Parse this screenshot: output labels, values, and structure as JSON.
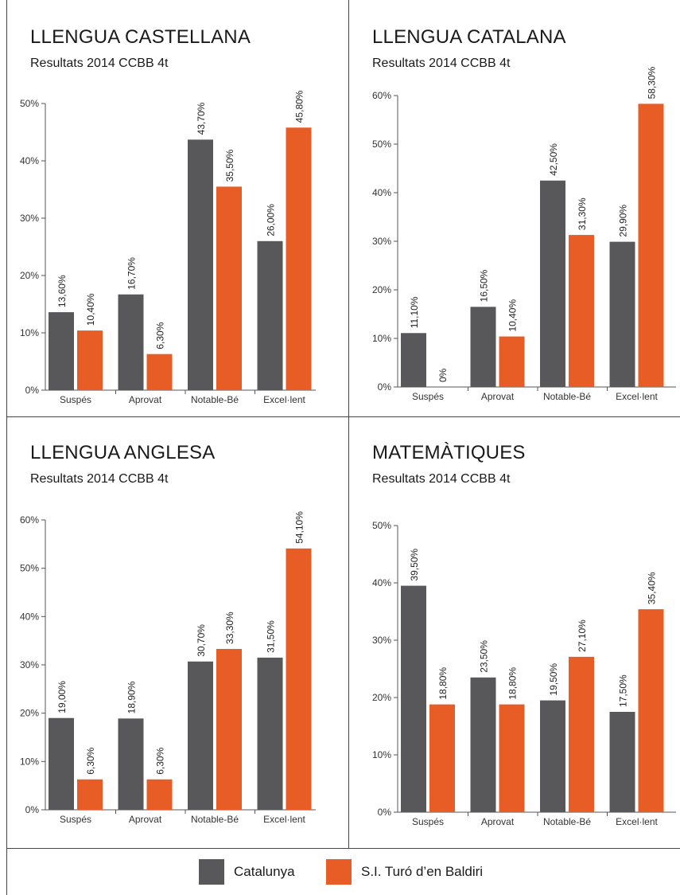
{
  "colors": {
    "catalunya": "#58585a",
    "school": "#e85c25"
  },
  "legend": {
    "catalunya": "Catalunya",
    "school": "S.I. Turó d’en Baldiri"
  },
  "chart_data": [
    {
      "type": "bar",
      "title": "LLENGUA CASTELLANA",
      "subtitle": "Resultats 2014 CCBB 4t",
      "categories": [
        "Suspés",
        "Aprovat",
        "Notable-Bé",
        "Excel·lent"
      ],
      "series": [
        {
          "name": "Catalunya",
          "values": [
            13.6,
            16.7,
            43.7,
            26.0
          ],
          "labels": [
            "13,60%",
            "16,70%",
            "43,70%",
            "26,00%"
          ]
        },
        {
          "name": "S.I. Turó d’en Baldiri",
          "values": [
            10.4,
            6.3,
            35.5,
            45.8
          ],
          "labels": [
            "10,40%",
            "6,30%",
            "35,50%",
            "45,80%"
          ]
        }
      ],
      "ylim": [
        0,
        50
      ],
      "yticks": [
        "0%",
        "10%",
        "20%",
        "30%",
        "40%",
        "50%"
      ]
    },
    {
      "type": "bar",
      "title": "LLENGUA CATALANA",
      "subtitle": "Resultats 2014 CCBB 4t",
      "categories": [
        "Suspés",
        "Aprovat",
        "Notable-Bé",
        "Excel·lent"
      ],
      "series": [
        {
          "name": "Catalunya",
          "values": [
            11.1,
            16.5,
            42.5,
            29.9
          ],
          "labels": [
            "11,10%",
            "16,50%",
            "42,50%",
            "29,90%"
          ]
        },
        {
          "name": "S.I. Turó d’en Baldiri",
          "values": [
            0,
            10.4,
            31.3,
            58.3
          ],
          "labels": [
            "0%",
            "10,40%",
            "31,30%",
            "58,30%"
          ]
        }
      ],
      "ylim": [
        0,
        60
      ],
      "yticks": [
        "0%",
        "10%",
        "20%",
        "30%",
        "40%",
        "50%",
        "60%"
      ]
    },
    {
      "type": "bar",
      "title": "LLENGUA ANGLESA",
      "subtitle": "Resultats 2014 CCBB 4t",
      "categories": [
        "Suspés",
        "Aprovat",
        "Notable-Bé",
        "Excel·lent"
      ],
      "series": [
        {
          "name": "Catalunya",
          "values": [
            19.0,
            18.9,
            30.7,
            31.5
          ],
          "labels": [
            "19,00%",
            "18,90%",
            "30,70%",
            "31,50%"
          ]
        },
        {
          "name": "S.I. Turó d’en Baldiri",
          "values": [
            6.3,
            6.3,
            33.3,
            54.1
          ],
          "labels": [
            "6,30%",
            "6,30%",
            "33,30%",
            "54,10%"
          ]
        }
      ],
      "ylim": [
        0,
        60
      ],
      "yticks": [
        "0%",
        "10%",
        "20%",
        "30%",
        "40%",
        "50%",
        "60%"
      ]
    },
    {
      "type": "bar",
      "title": "MATEMÀTIQUES",
      "subtitle": "Resultats 2014 CCBB 4t",
      "categories": [
        "Suspés",
        "Aprovat",
        "Notable-Bé",
        "Excel·lent"
      ],
      "series": [
        {
          "name": "Catalunya",
          "values": [
            39.5,
            23.5,
            19.5,
            17.5
          ],
          "labels": [
            "39,50%",
            "23,50%",
            "19,50%",
            "17,50%"
          ]
        },
        {
          "name": "S.I. Turó d’en Baldiri",
          "values": [
            18.8,
            18.8,
            27.1,
            35.4
          ],
          "labels": [
            "18,80%",
            "18,80%",
            "27,10%",
            "35,40%"
          ]
        }
      ],
      "ylim": [
        0,
        50
      ],
      "yticks": [
        "0%",
        "10%",
        "20%",
        "30%",
        "40%",
        "50%"
      ]
    }
  ]
}
